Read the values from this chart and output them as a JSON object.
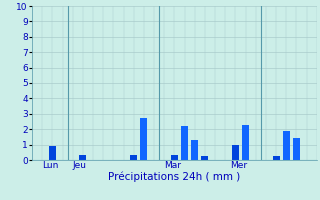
{
  "bar_data": [
    {
      "x": 2,
      "height": 0.9,
      "color": "#0044DD"
    },
    {
      "x": 5,
      "height": 0.3,
      "color": "#0044DD"
    },
    {
      "x": 10,
      "height": 0.3,
      "color": "#0044DD"
    },
    {
      "x": 11,
      "height": 2.75,
      "color": "#1166FF"
    },
    {
      "x": 14,
      "height": 0.3,
      "color": "#0044DD"
    },
    {
      "x": 15,
      "height": 2.2,
      "color": "#1166FF"
    },
    {
      "x": 16,
      "height": 1.3,
      "color": "#1166FF"
    },
    {
      "x": 17,
      "height": 0.25,
      "color": "#0044DD"
    },
    {
      "x": 20,
      "height": 1.0,
      "color": "#0044DD"
    },
    {
      "x": 21,
      "height": 2.3,
      "color": "#1166FF"
    },
    {
      "x": 24,
      "height": 0.25,
      "color": "#0044DD"
    },
    {
      "x": 25,
      "height": 1.9,
      "color": "#1166FF"
    },
    {
      "x": 26,
      "height": 1.4,
      "color": "#1166FF"
    }
  ],
  "vlines": [
    3.5,
    12.5,
    22.5
  ],
  "xtick_positions": [
    1,
    4,
    13,
    19.5
  ],
  "xtick_labels": [
    "Lun",
    "Jeu",
    "Mar",
    "Mer"
  ],
  "xlabel": "Précipitations 24h ( mm )",
  "ylim": [
    0,
    10
  ],
  "yticks": [
    0,
    1,
    2,
    3,
    4,
    5,
    6,
    7,
    8,
    9,
    10
  ],
  "bg_color": "#CCEEE8",
  "bar_width": 0.7,
  "grid_color": "#AACCCC",
  "vline_color": "#5599AA",
  "text_color": "#0000BB",
  "xlabel_fontsize": 7.5,
  "tick_fontsize": 6.5,
  "xlim": [
    0,
    28
  ]
}
